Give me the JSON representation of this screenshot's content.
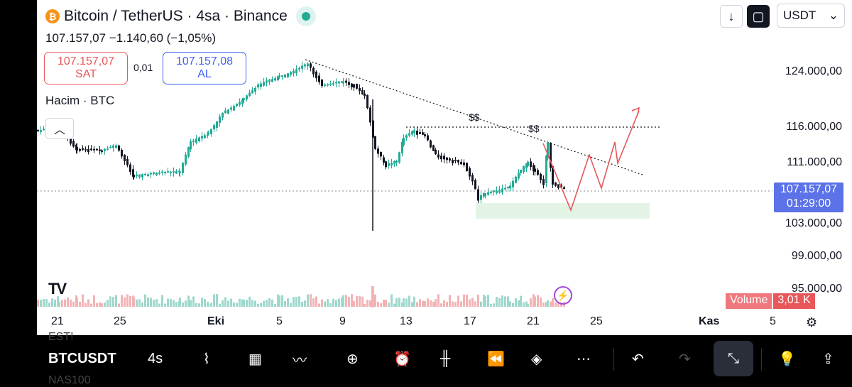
{
  "header": {
    "coin_symbol": "₿",
    "title": "Bitcoin / TetherUS · 4sa · Binance",
    "price_change": "107.157,07  −1.140,60 (−1,05%)"
  },
  "trade": {
    "sell_price": "107.157,07",
    "sell_label": "SAT",
    "spread": "0,01",
    "buy_price": "107.157,08",
    "buy_label": "AL"
  },
  "volume_indicator": "Hacim · BTC",
  "top_controls": {
    "download_icon": "↓",
    "currency": "USDT"
  },
  "price_axis": [
    "124.000,00",
    "116.000,00",
    "111.000,00",
    "103.000,00",
    "99.000,00",
    "95.000,00"
  ],
  "current_price_tag": {
    "price": "107.157,07",
    "countdown": "01:29:00"
  },
  "volume_tag": {
    "label": "Volume",
    "value": "3,01 K"
  },
  "time_axis": [
    "21",
    "25",
    "Eki",
    "5",
    "9",
    "13",
    "17",
    "21",
    "25",
    "Kas",
    "5"
  ],
  "annotations": {
    "liquidity_1": "$$",
    "liquidity_2": "$$"
  },
  "logo_text": "TV",
  "toolbar": {
    "symbol": "BTCUSDT",
    "interval": "4s",
    "ghost_top": "EST!",
    "ghost_bottom": "NAS100"
  },
  "colors": {
    "up": "#22ab94",
    "down": "#131722",
    "projection": "#e8575a",
    "accent": "#5b72e8",
    "zone": "#e3f4e6"
  }
}
